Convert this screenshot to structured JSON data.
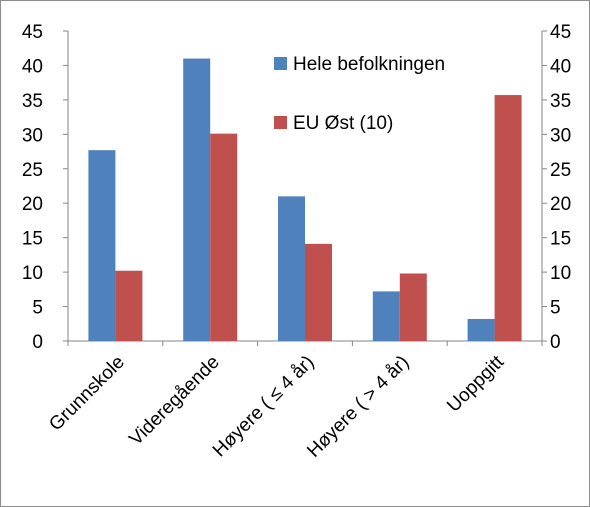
{
  "chart_data": {
    "type": "bar",
    "categories": [
      "Grunnskole",
      "Videregående",
      "Høyere ( ≤ 4 år)",
      "Høyere ( > 4 år)",
      "Uoppgitt"
    ],
    "series": [
      {
        "name": "Hele befolkningen",
        "color": "#4F81BD",
        "values": [
          27.7,
          41.0,
          21.0,
          7.2,
          3.2
        ]
      },
      {
        "name": "EU Øst (10)",
        "color": "#C0504D",
        "values": [
          10.2,
          30.1,
          14.1,
          9.8,
          35.7
        ]
      }
    ],
    "y_ticks": [
      "0",
      "5",
      "10",
      "15",
      "20",
      "25",
      "30",
      "35",
      "40",
      "45"
    ],
    "y2_ticks": [
      "0",
      "5",
      "10",
      "15",
      "20",
      "25",
      "30",
      "35",
      "40",
      "45"
    ],
    "ylim": [
      0,
      45
    ],
    "y2lim": [
      0,
      45
    ],
    "grid": false,
    "legend_position": "top-right"
  }
}
